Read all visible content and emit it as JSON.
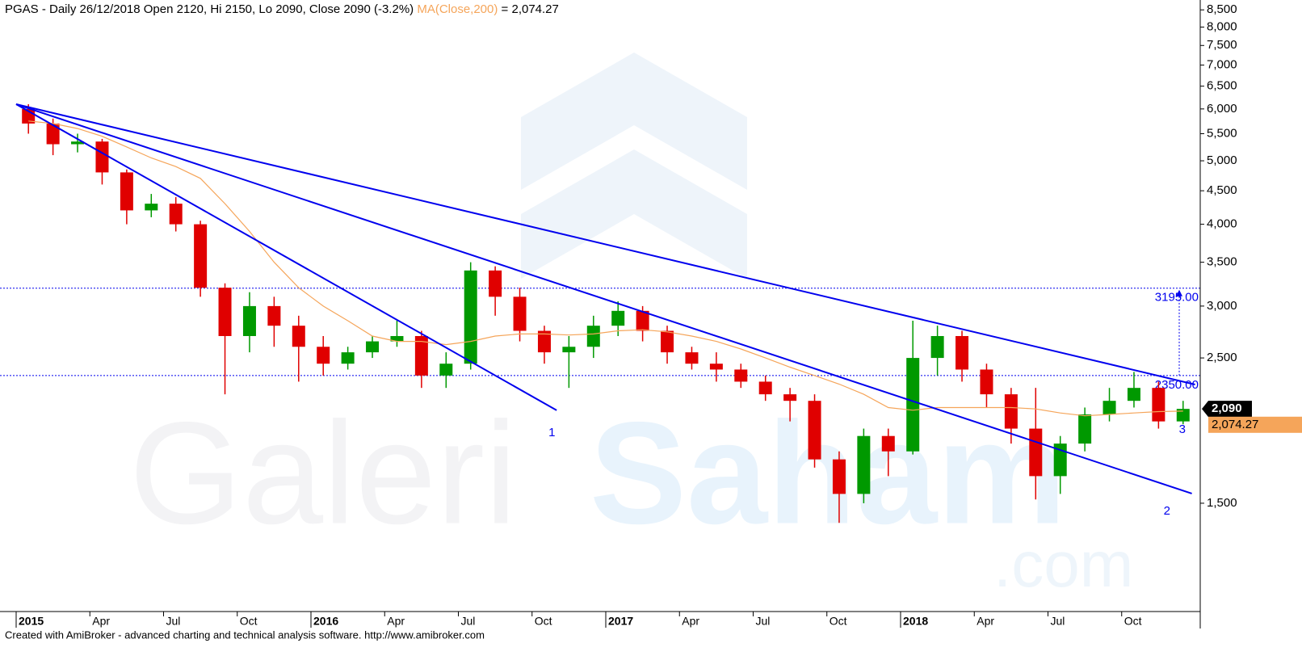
{
  "chart_data": {
    "type": "candlestick",
    "title": "PGAS - Daily 26/12/2018 Open 2120, Hi 2150, Lo 2090, Close 2090 (-3.2%)",
    "title_suffix": "= 2,074.27",
    "x": [
      "2015-01",
      "2015-02",
      "2015-03",
      "2015-04",
      "2015-05",
      "2015-06",
      "2015-07",
      "2015-08",
      "2015-09",
      "2015-10",
      "2015-11",
      "2015-12",
      "2016-01",
      "2016-02",
      "2016-03",
      "2016-04",
      "2016-05",
      "2016-06",
      "2016-07",
      "2016-08",
      "2016-09",
      "2016-10",
      "2016-11",
      "2016-12",
      "2017-01",
      "2017-02",
      "2017-03",
      "2017-04",
      "2017-05",
      "2017-06",
      "2017-07",
      "2017-08",
      "2017-09",
      "2017-10",
      "2017-11",
      "2017-12",
      "2018-01",
      "2018-02",
      "2018-03",
      "2018-04",
      "2018-05",
      "2018-06",
      "2018-07",
      "2018-08",
      "2018-09",
      "2018-10",
      "2018-11",
      "2018-12"
    ],
    "open": [
      6000,
      5700,
      5300,
      5350,
      4800,
      4200,
      4300,
      4000,
      3200,
      2700,
      3000,
      2800,
      2600,
      2450,
      2550,
      2650,
      2700,
      2350,
      2450,
      3400,
      3100,
      2750,
      2550,
      2600,
      2800,
      2950,
      2750,
      2550,
      2450,
      2400,
      2300,
      2200,
      2150,
      1750,
      1550,
      1900,
      1800,
      2500,
      2700,
      2400,
      2200,
      1950,
      1650,
      1850,
      2050,
      2150,
      2250,
      2000
    ],
    "high": [
      6100,
      5800,
      5500,
      5400,
      4850,
      4450,
      4400,
      4050,
      3250,
      3150,
      3100,
      2900,
      2700,
      2600,
      2700,
      2850,
      2750,
      2550,
      3500,
      3450,
      3200,
      2800,
      2700,
      2900,
      3050,
      3000,
      2800,
      2600,
      2550,
      2450,
      2350,
      2250,
      2200,
      1800,
      1950,
      1950,
      2850,
      2800,
      2750,
      2450,
      2250,
      2250,
      1900,
      2100,
      2250,
      2380,
      2300,
      2150
    ],
    "low": [
      5500,
      5100,
      5150,
      4600,
      4000,
      4100,
      3900,
      3100,
      2200,
      2550,
      2600,
      2300,
      2350,
      2400,
      2500,
      2600,
      2250,
      2250,
      2400,
      2900,
      2650,
      2450,
      2250,
      2500,
      2700,
      2650,
      2450,
      2400,
      2300,
      2250,
      2150,
      2000,
      1700,
      1400,
      1500,
      1650,
      1780,
      2350,
      2300,
      2100,
      1850,
      1520,
      1550,
      1800,
      2000,
      2100,
      1950,
      1980
    ],
    "close": [
      5700,
      5300,
      5350,
      4800,
      4200,
      4300,
      4000,
      3200,
      2700,
      3000,
      2800,
      2600,
      2450,
      2550,
      2650,
      2700,
      2350,
      2450,
      3400,
      3100,
      2750,
      2550,
      2600,
      2800,
      2950,
      2750,
      2550,
      2450,
      2400,
      2300,
      2200,
      2150,
      1750,
      1550,
      1900,
      1800,
      2500,
      2700,
      2400,
      2200,
      1950,
      1650,
      1850,
      2050,
      2150,
      2250,
      2000,
      2090
    ],
    "up_color": "#009900",
    "down_color": "#e00000",
    "series": [
      {
        "name": "MA(Close,200)",
        "color": "#f5a55a",
        "values": [
          5750,
          5700,
          5600,
          5450,
          5250,
          5050,
          4900,
          4700,
          4300,
          3900,
          3500,
          3200,
          3000,
          2850,
          2700,
          2650,
          2650,
          2620,
          2650,
          2700,
          2720,
          2720,
          2710,
          2720,
          2750,
          2760,
          2740,
          2700,
          2650,
          2580,
          2500,
          2420,
          2350,
          2280,
          2200,
          2100,
          2080,
          2100,
          2100,
          2100,
          2100,
          2090,
          2060,
          2040,
          2050,
          2060,
          2070,
          2074
        ]
      }
    ],
    "log_scale": true,
    "ylim": [
      1025,
      8800
    ],
    "yticks": [
      {
        "value": 1500,
        "label": "1,500"
      },
      {
        "value": 2500,
        "label": "2,500"
      },
      {
        "value": 3000,
        "label": "3,000"
      },
      {
        "value": 3500,
        "label": "3,500"
      },
      {
        "value": 4000,
        "label": "4,000"
      },
      {
        "value": 4500,
        "label": "4,500"
      },
      {
        "value": 5000,
        "label": "5,000"
      },
      {
        "value": 5500,
        "label": "5,500"
      },
      {
        "value": 6000,
        "label": "6,000"
      },
      {
        "value": 6500,
        "label": "6,500"
      },
      {
        "value": 7000,
        "label": "7,000"
      },
      {
        "value": 7500,
        "label": "7,500"
      },
      {
        "value": 8000,
        "label": "8,000"
      },
      {
        "value": 8500,
        "label": "8,500"
      }
    ],
    "xticks": [
      {
        "value": "2015-01",
        "label": "2015"
      },
      {
        "value": "2015-04",
        "label": "Apr"
      },
      {
        "value": "2015-07",
        "label": "Jul"
      },
      {
        "value": "2015-10",
        "label": "Oct"
      },
      {
        "value": "2016-01",
        "label": "2016"
      },
      {
        "value": "2016-04",
        "label": "Apr"
      },
      {
        "value": "2016-07",
        "label": "Jul"
      },
      {
        "value": "2016-10",
        "label": "Oct"
      },
      {
        "value": "2017-01",
        "label": "2017"
      },
      {
        "value": "2017-04",
        "label": "Apr"
      },
      {
        "value": "2017-07",
        "label": "Jul"
      },
      {
        "value": "2017-10",
        "label": "Oct"
      },
      {
        "value": "2018-01",
        "label": "2018"
      },
      {
        "value": "2018-04",
        "label": "Apr"
      },
      {
        "value": "2018-07",
        "label": "Jul"
      },
      {
        "value": "2018-10",
        "label": "Oct"
      }
    ],
    "trendline_color": "#0000ee",
    "trendlines": [
      {
        "label": "1",
        "x": [
          "2015-01-01",
          "2016-11-01"
        ],
        "y": [
          6100,
          2080
        ]
      },
      {
        "label": "2",
        "x": [
          "2015-01-01",
          "2018-12-27"
        ],
        "y": [
          6100,
          1552
        ]
      },
      {
        "label": "3",
        "x": [
          "2015-01-01",
          "2018-12-31"
        ],
        "y": [
          6100,
          2277
        ]
      }
    ],
    "levels": [
      {
        "value": 3195,
        "label": "3195.00"
      },
      {
        "value": 2350,
        "label": "2350.00"
      }
    ],
    "last_price": {
      "value": 2090,
      "label": "2,090"
    },
    "ma_last": {
      "value": 2074.27,
      "label": "2,074.27"
    }
  },
  "watermark": {
    "left": "Galeri",
    "right": "Saham",
    "domain": ".com"
  },
  "footer": "Created with AmiBroker - advanced charting and technical analysis software. http://www.amibroker.com"
}
